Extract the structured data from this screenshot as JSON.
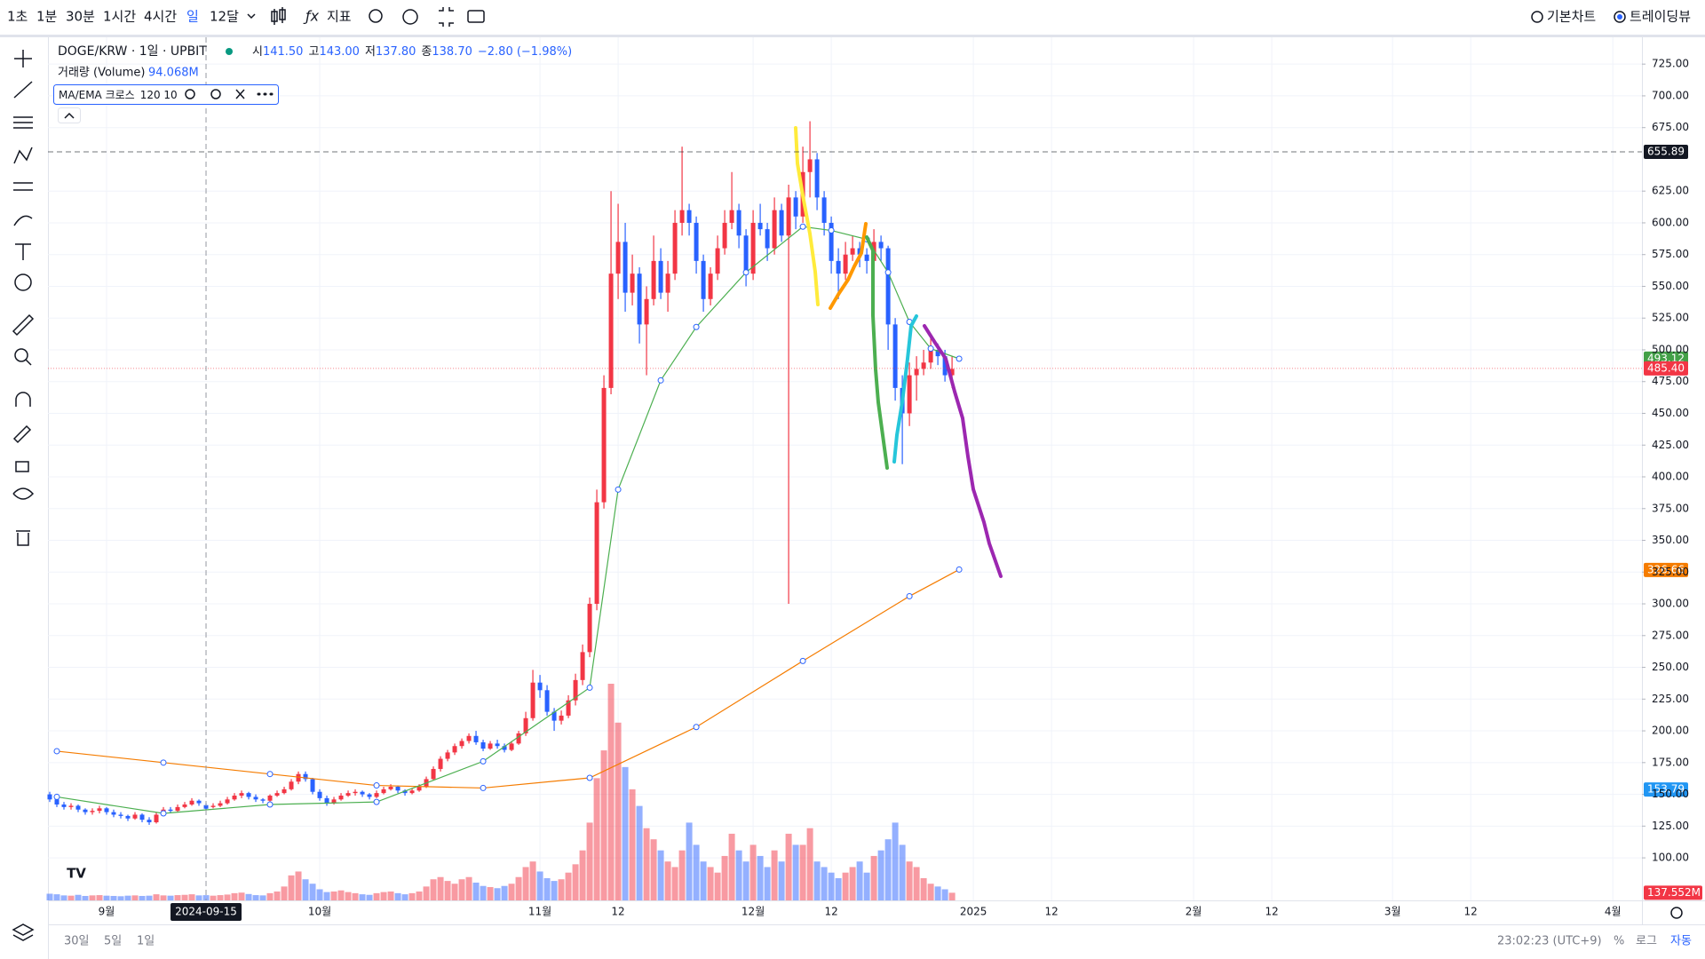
{
  "toolbar": {
    "intervals": [
      "1초",
      "1분",
      "30분",
      "1시간",
      "4시간",
      "일",
      "12달"
    ],
    "indicators": "지표",
    "chart_types": [
      "기본차트",
      "트레이딩뷰"
    ]
  },
  "legend": {
    "symbol": "DOGE/KRW · 1일 · UPBIT",
    "open_label": "시",
    "open": "141.50",
    "high_label": "고",
    "high": "143.00",
    "low_label": "저",
    "low": "137.80",
    "close_label": "종",
    "close": "138.70",
    "change": "−2.80 (−1.98%)",
    "volume_name": "거래량 (Volume)",
    "volume_value": "94.068M",
    "indicator": "MA/EMA 크로스",
    "indicator_params": "120 10"
  },
  "bottom_bar": {
    "ranges": [
      "30일",
      "5일",
      "1일"
    ],
    "clock": "23:02:23 (UTC+9)",
    "percent": "%",
    "log": "로그",
    "auto": "자동"
  },
  "chart_data": {
    "type": "candlestick",
    "up_color": "#f23645",
    "down_color": "#2962ff",
    "grid": true,
    "ylim": [
      66.5,
      747.5
    ],
    "xlim": [
      -0.25,
      224.1
    ],
    "yticks": [
      {
        "value": 100,
        "label": "100.00"
      },
      {
        "value": 125,
        "label": "125.00"
      },
      {
        "value": 150,
        "label": "150.00"
      },
      {
        "value": 175,
        "label": "175.00"
      },
      {
        "value": 200,
        "label": "200.00"
      },
      {
        "value": 225,
        "label": "225.00"
      },
      {
        "value": 250,
        "label": "250.00"
      },
      {
        "value": 275,
        "label": "275.00"
      },
      {
        "value": 300,
        "label": "300.00"
      },
      {
        "value": 325,
        "label": "325.00"
      },
      {
        "value": 350,
        "label": "350.00"
      },
      {
        "value": 375,
        "label": "375.00"
      },
      {
        "value": 400,
        "label": "400.00"
      },
      {
        "value": 425,
        "label": "425.00"
      },
      {
        "value": 450,
        "label": "450.00"
      },
      {
        "value": 475,
        "label": "475.00"
      },
      {
        "value": 500,
        "label": "500.00"
      },
      {
        "value": 525,
        "label": "525.00"
      },
      {
        "value": 550,
        "label": "550.00"
      },
      {
        "value": 575,
        "label": "575.00"
      },
      {
        "value": 600,
        "label": "600.00"
      },
      {
        "value": 625,
        "label": "625.00"
      },
      {
        "value": 675,
        "label": "675.00"
      },
      {
        "value": 700,
        "label": "700.00"
      },
      {
        "value": 725,
        "label": "725.00"
      }
    ],
    "xticks": [
      {
        "value": 8,
        "label": "9월"
      },
      {
        "value": 38,
        "label": "10월"
      },
      {
        "value": 69,
        "label": "11월"
      },
      {
        "value": 80,
        "label": "12"
      },
      {
        "value": 99,
        "label": "12월"
      },
      {
        "value": 110,
        "label": "12"
      },
      {
        "value": 130,
        "label": "2025"
      },
      {
        "value": 141,
        "label": "12"
      },
      {
        "value": 161,
        "label": "2월"
      },
      {
        "value": 172,
        "label": "12"
      },
      {
        "value": 189,
        "label": "3월"
      },
      {
        "value": 200,
        "label": "12"
      },
      {
        "value": 220,
        "label": "4월"
      }
    ],
    "crosshair": {
      "value": 22,
      "label": "2024-09-15"
    },
    "price_labels": [
      {
        "value": 655.89,
        "label": "655.89",
        "color": "#131722",
        "line": "dashed"
      },
      {
        "value": 493.12,
        "label": "493.12",
        "color": "#43a047"
      },
      {
        "value": 485.4,
        "label": "485.40",
        "color": "#f23645",
        "line": "dotted"
      },
      {
        "value": 326.66,
        "label": "326.66",
        "color": "#f57c00"
      },
      {
        "value": 153.79,
        "label": "153.79",
        "color": "#2196f3"
      }
    ],
    "volume_label": {
      "value": 137.552,
      "label": "137.552M",
      "color": "#f23645"
    },
    "ohlc": [
      [
        150,
        152,
        144,
        146
      ],
      [
        146,
        148,
        140,
        142
      ],
      [
        142,
        144,
        138,
        140
      ],
      [
        140,
        143,
        138,
        141
      ],
      [
        141,
        142,
        136,
        138
      ],
      [
        138,
        139,
        134,
        136
      ],
      [
        136,
        139,
        134,
        137
      ],
      [
        137,
        141,
        135,
        139
      ],
      [
        139,
        140,
        134,
        136
      ],
      [
        136,
        138,
        132,
        134
      ],
      [
        134,
        136,
        131,
        133
      ],
      [
        133,
        134,
        129,
        131
      ],
      [
        131,
        136,
        130,
        134
      ],
      [
        134,
        135,
        128,
        130
      ],
      [
        130,
        132,
        126,
        128
      ],
      [
        128,
        136,
        127,
        134
      ],
      [
        134,
        140,
        133,
        138
      ],
      [
        138,
        140,
        135,
        137
      ],
      [
        137,
        142,
        136,
        140
      ],
      [
        140,
        144,
        139,
        142
      ],
      [
        142,
        147,
        141,
        145
      ],
      [
        145,
        146,
        141,
        143
      ],
      [
        141.5,
        143,
        137.8,
        138.7
      ],
      [
        140,
        143,
        139,
        141
      ],
      [
        141,
        145,
        140,
        143
      ],
      [
        143,
        148,
        142,
        146
      ],
      [
        146,
        151,
        145,
        149
      ],
      [
        149,
        153,
        147,
        151
      ],
      [
        151,
        152,
        146,
        148
      ],
      [
        148,
        150,
        144,
        146
      ],
      [
        146,
        147,
        143,
        145
      ],
      [
        145,
        150,
        144,
        149
      ],
      [
        149,
        153,
        148,
        151
      ],
      [
        151,
        156,
        150,
        154
      ],
      [
        154,
        162,
        153,
        160
      ],
      [
        160,
        168,
        158,
        166
      ],
      [
        166,
        168,
        160,
        162
      ],
      [
        162,
        163,
        150,
        152
      ],
      [
        152,
        154,
        145,
        147
      ],
      [
        147,
        149,
        141,
        143
      ],
      [
        143,
        148,
        142,
        146
      ],
      [
        146,
        151,
        145,
        149
      ],
      [
        149,
        153,
        148,
        151
      ],
      [
        151,
        154,
        149,
        152
      ],
      [
        152,
        153,
        148,
        150
      ],
      [
        150,
        151,
        146,
        148
      ],
      [
        148,
        153,
        147,
        151
      ],
      [
        151,
        156,
        150,
        154
      ],
      [
        154,
        158,
        153,
        156
      ],
      [
        156,
        157,
        151,
        153
      ],
      [
        153,
        154,
        149,
        151
      ],
      [
        151,
        155,
        150,
        153
      ],
      [
        153,
        158,
        152,
        156
      ],
      [
        156,
        164,
        155,
        162
      ],
      [
        162,
        172,
        161,
        170
      ],
      [
        170,
        180,
        168,
        178
      ],
      [
        178,
        185,
        176,
        183
      ],
      [
        183,
        190,
        181,
        188
      ],
      [
        188,
        194,
        186,
        192
      ],
      [
        192,
        198,
        190,
        196
      ],
      [
        196,
        200,
        189,
        191
      ],
      [
        191,
        193,
        184,
        186
      ],
      [
        186,
        192,
        185,
        190
      ],
      [
        190,
        193,
        186,
        188
      ],
      [
        188,
        190,
        183,
        185
      ],
      [
        185,
        192,
        184,
        190
      ],
      [
        190,
        200,
        189,
        198
      ],
      [
        198,
        215,
        196,
        210
      ],
      [
        210,
        248,
        208,
        238
      ],
      [
        238,
        244,
        226,
        232
      ],
      [
        232,
        236,
        212,
        215
      ],
      [
        215,
        218,
        200,
        208
      ],
      [
        208,
        216,
        205,
        212
      ],
      [
        212,
        228,
        210,
        224
      ],
      [
        224,
        245,
        220,
        240
      ],
      [
        240,
        268,
        236,
        262
      ],
      [
        262,
        305,
        258,
        300
      ],
      [
        300,
        390,
        295,
        380
      ],
      [
        380,
        480,
        375,
        470
      ],
      [
        470,
        625,
        465,
        560
      ],
      [
        560,
        615,
        540,
        585
      ],
      [
        585,
        600,
        530,
        545
      ],
      [
        545,
        575,
        535,
        560
      ],
      [
        560,
        565,
        505,
        520
      ],
      [
        520,
        550,
        480,
        540
      ],
      [
        540,
        590,
        535,
        570
      ],
      [
        570,
        580,
        540,
        545
      ],
      [
        545,
        570,
        530,
        560
      ],
      [
        560,
        610,
        555,
        600
      ],
      [
        600,
        660,
        590,
        610
      ],
      [
        610,
        615,
        590,
        600
      ],
      [
        600,
        605,
        560,
        570
      ],
      [
        570,
        575,
        530,
        540
      ],
      [
        540,
        565,
        535,
        560
      ],
      [
        560,
        590,
        555,
        580
      ],
      [
        580,
        610,
        575,
        600
      ],
      [
        600,
        640,
        595,
        610
      ],
      [
        610,
        615,
        580,
        590
      ],
      [
        590,
        595,
        550,
        560
      ],
      [
        560,
        610,
        555,
        600
      ],
      [
        600,
        615,
        590,
        595
      ],
      [
        595,
        600,
        570,
        580
      ],
      [
        580,
        620,
        575,
        610
      ],
      [
        610,
        615,
        585,
        590
      ],
      [
        590,
        630,
        300,
        620
      ],
      [
        620,
        625,
        595,
        605
      ],
      [
        605,
        660,
        600,
        640
      ],
      [
        640,
        680,
        620,
        650
      ],
      [
        650,
        655,
        610,
        620
      ],
      [
        620,
        625,
        590,
        600
      ],
      [
        600,
        605,
        560,
        570
      ],
      [
        570,
        580,
        540,
        560
      ],
      [
        560,
        585,
        555,
        575
      ],
      [
        575,
        590,
        570,
        580
      ],
      [
        580,
        585,
        565,
        575
      ],
      [
        575,
        580,
        560,
        570
      ],
      [
        570,
        595,
        565,
        585
      ],
      [
        585,
        590,
        570,
        580
      ],
      [
        580,
        582,
        500,
        520
      ],
      [
        520,
        525,
        460,
        470
      ],
      [
        470,
        480,
        410,
        450
      ],
      [
        450,
        490,
        440,
        480
      ],
      [
        480,
        495,
        460,
        485
      ],
      [
        485,
        500,
        480,
        490
      ],
      [
        490,
        510,
        485,
        500
      ],
      [
        500,
        505,
        488,
        495
      ],
      [
        495,
        500,
        475,
        480
      ],
      [
        480,
        495,
        470,
        485
      ]
    ],
    "volume": [
      120,
      110,
      90,
      85,
      100,
      80,
      90,
      95,
      85,
      80,
      75,
      85,
      90,
      80,
      85,
      110,
      90,
      85,
      95,
      100,
      110,
      90,
      94.068,
      85,
      95,
      105,
      130,
      140,
      115,
      95,
      90,
      130,
      160,
      250,
      450,
      520,
      380,
      300,
      200,
      150,
      160,
      180,
      150,
      130,
      110,
      100,
      130,
      150,
      160,
      130,
      110,
      130,
      160,
      250,
      380,
      420,
      350,
      300,
      380,
      420,
      320,
      260,
      240,
      220,
      260,
      300,
      420,
      600,
      700,
      520,
      400,
      350,
      380,
      500,
      650,
      900,
      1400,
      2200,
      2700,
      3900,
      3200,
      2400,
      2000,
      1700,
      1300,
      1100,
      900,
      700,
      600,
      900,
      1400,
      1000,
      700,
      600,
      500,
      800,
      1200,
      900,
      700,
      1000,
      800,
      600,
      900,
      700,
      1200,
      1000,
      1000,
      1300,
      700,
      600,
      500,
      400,
      500,
      600,
      700,
      500,
      800,
      900,
      1100,
      1400,
      1000,
      700,
      600,
      400,
      300,
      250,
      200,
      137.552
    ],
    "lines": [
      {
        "color": "#f57c00",
        "x": [
          1,
          16,
          31,
          46,
          61,
          76,
          91,
          106,
          121,
          128
        ],
        "values": [
          184,
          175,
          166,
          157,
          155,
          163,
          203,
          255,
          306,
          327
        ]
      },
      {
        "color": "#4caf50",
        "x": [
          1,
          16,
          31,
          46,
          61,
          76,
          80,
          86,
          91,
          98,
          106,
          110,
          115,
          118,
          121,
          124,
          128
        ],
        "values": [
          148,
          135,
          142,
          144,
          176,
          234,
          390,
          476,
          518,
          561,
          597,
          594,
          587,
          561,
          522,
          501,
          493
        ]
      }
    ]
  }
}
